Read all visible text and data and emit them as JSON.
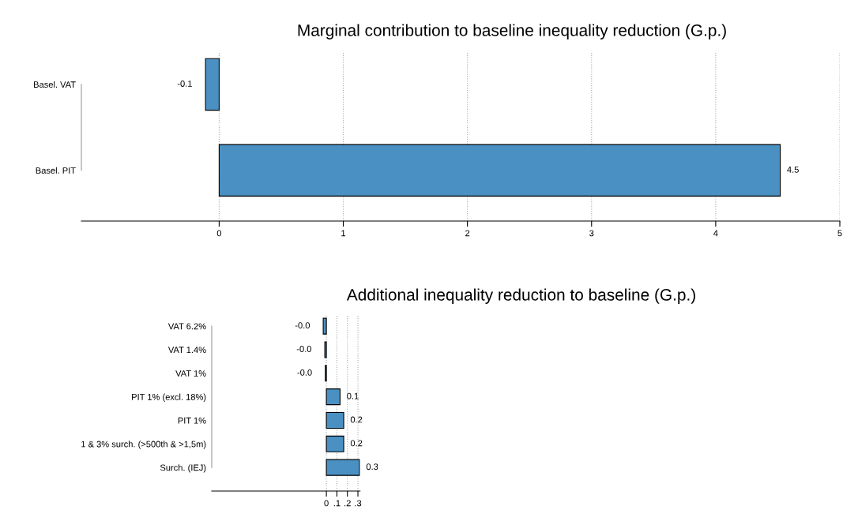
{
  "chart_data": [
    {
      "type": "bar",
      "orientation": "horizontal",
      "title": "Marginal contribution to baseline inequality reduction (G.p.)",
      "categories": [
        "Basel. VAT",
        "Basel. PIT"
      ],
      "values": [
        -0.11,
        4.52
      ],
      "value_labels": [
        "-0.1",
        "4.5"
      ],
      "color": "#4a90c2",
      "xlim": [
        -1.11,
        5
      ],
      "xticks": [
        0,
        1,
        2,
        3,
        4,
        5
      ],
      "grid": "x"
    },
    {
      "type": "bar",
      "orientation": "horizontal",
      "title": "Additional inequality reduction to baseline (G.p.)",
      "categories": [
        "VAT 6.2%",
        "VAT 1.4%",
        "VAT 1%",
        "PIT 1% (excl. 18%)",
        "PIT 1%",
        "1 & 3% surch. (>500th & >1,5m)",
        "Surch. (IEJ)"
      ],
      "values": [
        -0.03,
        -0.015,
        -0.01,
        0.13,
        0.165,
        0.165,
        0.315
      ],
      "value_labels": [
        "-0.0",
        "-0.0",
        "-0.0",
        "0.1",
        "0.2",
        "0.2",
        "0.3"
      ],
      "color": "#4a90c2",
      "xlim": [
        -1.09,
        0.32
      ],
      "xticks": [
        0,
        {
          "value": 0.1,
          "label": ".1"
        },
        {
          "value": 0.2,
          "label": ".2"
        },
        {
          "value": 0.3,
          "label": ".3"
        }
      ],
      "grid": "x"
    }
  ]
}
